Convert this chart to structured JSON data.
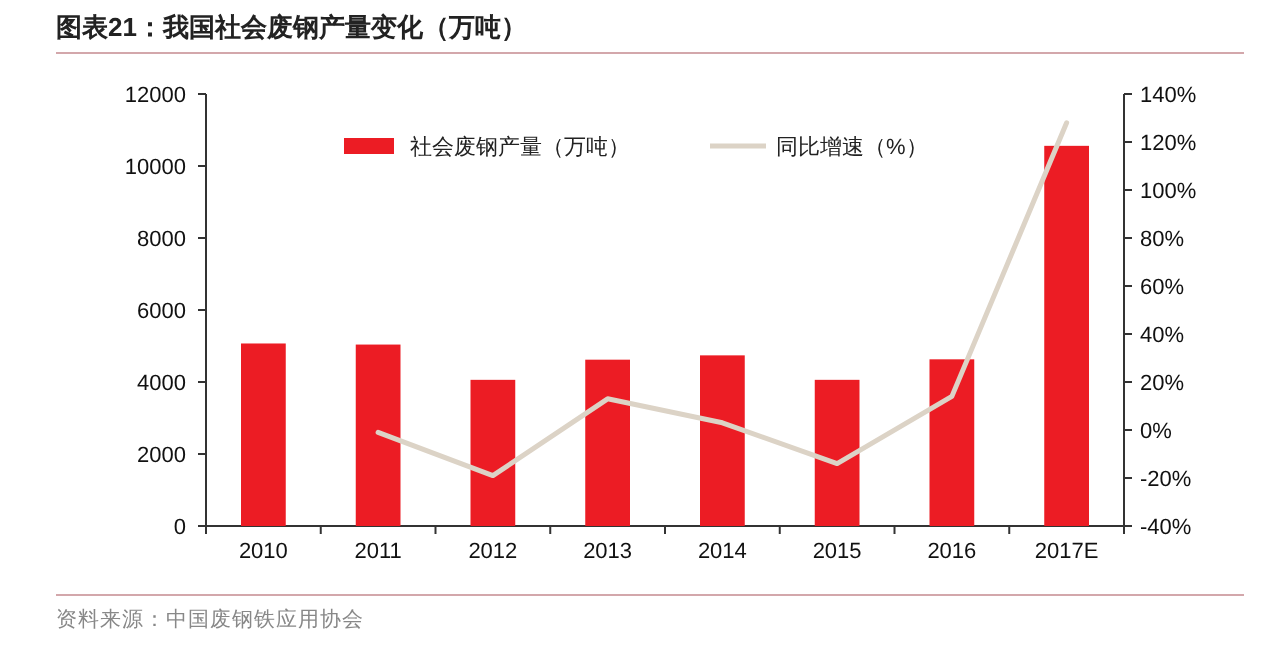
{
  "chart_data": {
    "type": "bar",
    "title": "图表21：我国社会废钢产量变化（万吨）",
    "categories": [
      "2010",
      "2011",
      "2012",
      "2013",
      "2014",
      "2015",
      "2016",
      "2017E"
    ],
    "series": [
      {
        "name": "社会废钢产量（万吨）",
        "color": "#ec1c24",
        "values": [
          5070,
          5040,
          4060,
          4620,
          4740,
          4060,
          4630,
          10560
        ]
      },
      {
        "name": "同比增速（%）",
        "type": "line",
        "axis": "y2",
        "color": "#dcd3c6",
        "values": [
          null,
          -1,
          -19,
          13,
          3,
          -14,
          14,
          128
        ]
      }
    ],
    "ylim": [
      0,
      12000
    ],
    "yticks": [
      0,
      2000,
      4000,
      6000,
      8000,
      10000,
      12000
    ],
    "y2lim": [
      -40,
      140
    ],
    "y2ticks": [
      {
        "value": -40,
        "label": "-40%"
      },
      {
        "value": -20,
        "label": "-20%"
      },
      {
        "value": 0,
        "label": "0%"
      },
      {
        "value": 20,
        "label": "20%"
      },
      {
        "value": 40,
        "label": "40%"
      },
      {
        "value": 60,
        "label": "60%"
      },
      {
        "value": 80,
        "label": "80%"
      },
      {
        "value": 100,
        "label": "100%"
      },
      {
        "value": 120,
        "label": "120%"
      },
      {
        "value": 140,
        "label": "140%"
      }
    ],
    "legend": "top",
    "annotations": [
      "资料来源：中国废钢铁应用协会"
    ]
  }
}
